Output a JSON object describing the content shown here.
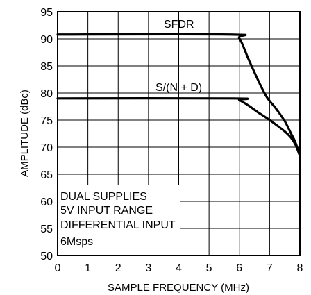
{
  "chart_data": {
    "type": "line",
    "xlabel": "SAMPLE FREQUENCY (MHz)",
    "ylabel": "AMPLITUDE (dBc)",
    "xlim": [
      0,
      8
    ],
    "ylim": [
      50,
      95
    ],
    "x_ticks": [
      "0",
      "1",
      "2",
      "3",
      "4",
      "5",
      "6",
      "7",
      "8"
    ],
    "y_ticks": [
      "50",
      "55",
      "60",
      "65",
      "70",
      "75",
      "80",
      "85",
      "90",
      "95"
    ],
    "grid": true,
    "series": [
      {
        "name": "SFDR",
        "x": [
          0,
          5.7,
          6.0,
          6.3,
          6.6,
          6.9,
          7.2,
          7.5,
          7.7,
          7.85,
          8.0
        ],
        "y": [
          90.8,
          90.8,
          90.1,
          86.3,
          82.6,
          79.3,
          77.2,
          74.8,
          72.6,
          70.9,
          68.4
        ]
      },
      {
        "name": "S/(N + D)",
        "x": [
          0,
          5.8,
          6.0,
          6.3,
          6.6,
          6.9,
          7.2,
          7.5,
          7.7,
          7.85,
          8.0
        ],
        "y": [
          79.0,
          79.0,
          78.7,
          77.7,
          76.5,
          75.4,
          74.2,
          72.9,
          71.8,
          70.5,
          68.4
        ]
      }
    ],
    "annotations": [
      "DUAL SUPPLIES",
      "5V INPUT RANGE",
      "DIFFERENTIAL INPUT",
      "6Msps"
    ]
  }
}
